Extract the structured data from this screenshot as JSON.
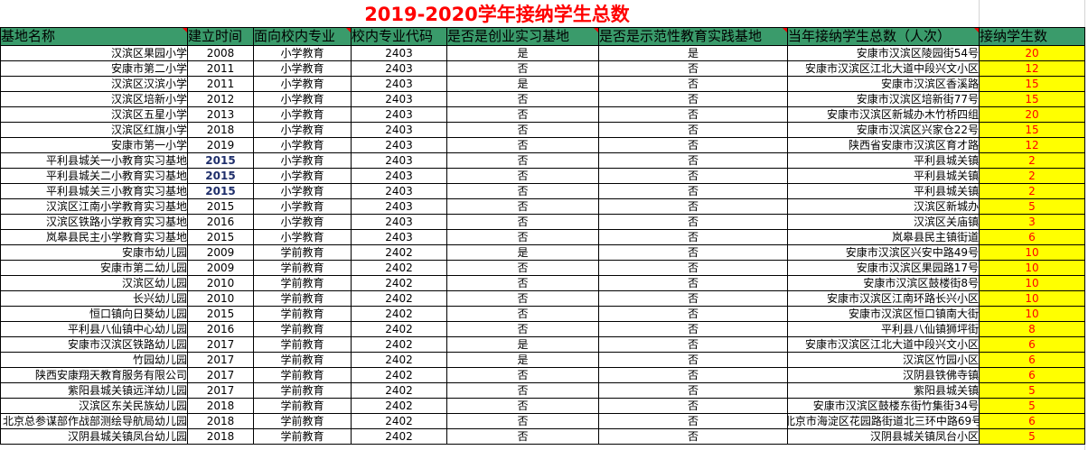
{
  "title": "2019-2020学年接纳学生总数",
  "colors": {
    "header_bg": "#3a9b6b",
    "count_bg": "#ffff00",
    "count_text": "#ff0000",
    "title": "#ff0000"
  },
  "headers": [
    "基地名称",
    "建立时间",
    "面向校内专业",
    "校内专业代码",
    "是否是创业实习基地",
    "是否是示范性教育实践基地",
    "当年接纳学生总数（人次）",
    "接纳学生数"
  ],
  "rows": [
    [
      "汉滨区果园小学",
      "2008",
      "小学教育",
      "2403",
      "是",
      "是",
      "安康市汉滨区陵园街54号",
      "20"
    ],
    [
      "安康市第二小学",
      "2011",
      "小学教育",
      "2403",
      "否",
      "否",
      "安康市汉滨区江北大道中段兴文小区",
      "12"
    ],
    [
      "汉滨区汉滨小学",
      "2011",
      "小学教育",
      "2403",
      "是",
      "否",
      "安康市汉滨区香溪路",
      "15"
    ],
    [
      "汉滨区培新小学",
      "2012",
      "小学教育",
      "2403",
      "否",
      "否",
      "安康市汉滨区培新街77号",
      "15"
    ],
    [
      "汉滨区五星小学",
      "2013",
      "小学教育",
      "2403",
      "否",
      "否",
      "安康市汉滨区新城办木竹桥四组",
      "20"
    ],
    [
      "汉滨区红旗小学",
      "2018",
      "小学教育",
      "2403",
      "否",
      "否",
      "安康市汉滨区兴家仓22号",
      "15"
    ],
    [
      "安康市第一小学",
      "2019",
      "小学教育",
      "2403",
      "否",
      "否",
      "陕西省安康市汉滨区育才路",
      "12"
    ],
    [
      "平利县城关一小教育实习基地",
      "2015",
      "小学教育",
      "2403",
      "否",
      "否",
      "平利县城关镇",
      "2"
    ],
    [
      "平利县城关二小教育实习基地",
      "2015",
      "小学教育",
      "2403",
      "否",
      "否",
      "平利县城关镇",
      "2"
    ],
    [
      "平利县城关三小教育实习基地",
      "2015",
      "小学教育",
      "2403",
      "否",
      "否",
      "平利县城关镇",
      "2"
    ],
    [
      "汉滨区江南小学教育实习基地",
      "2015",
      "小学教育",
      "2403",
      "否",
      "否",
      "汉滨区新城办",
      "5"
    ],
    [
      "汉滨区铁路小学教育实习基地",
      "2016",
      "小学教育",
      "2403",
      "否",
      "否",
      "汉滨区关庙镇",
      "3"
    ],
    [
      "岚皋县民主小学教育实习基地",
      "2015",
      "小学教育",
      "2403",
      "否",
      "否",
      "岚皋县民主镇街道",
      "6"
    ],
    [
      "安康市幼儿园",
      "2009",
      "学前教育",
      "2402",
      "是",
      "否",
      "安康市汉滨区兴安中路49号",
      "10"
    ],
    [
      "安康市第二幼儿园",
      "2009",
      "学前教育",
      "2402",
      "否",
      "否",
      "安康市汉滨区果园路17号",
      "10"
    ],
    [
      "汉滨区幼儿园",
      "2010",
      "学前教育",
      "2402",
      "否",
      "否",
      "安康市汉滨区鼓楼街8号",
      "10"
    ],
    [
      "长兴幼儿园",
      "2010",
      "学前教育",
      "2402",
      "否",
      "否",
      "安康市汉滨区江南环路长兴小区",
      "10"
    ],
    [
      "恒口镇向日葵幼儿园",
      "2015",
      "学前教育",
      "2402",
      "否",
      "否",
      "安康市汉滨区恒口镇南大街",
      "10"
    ],
    [
      "平利县八仙镇中心幼儿园",
      "2016",
      "学前教育",
      "2402",
      "否",
      "否",
      "平利县八仙镇狮坪街",
      "8"
    ],
    [
      "安康市汉滨区铁路幼儿园",
      "2017",
      "学前教育",
      "2402",
      "是",
      "否",
      "安康市汉滨区江北大道中段兴文小区",
      "6"
    ],
    [
      "竹园幼儿园",
      "2017",
      "学前教育",
      "2402",
      "是",
      "否",
      "汉滨区竹园小区",
      "6"
    ],
    [
      "陕西安康翔天教育服务有限公司",
      "2017",
      "学前教育",
      "2402",
      "否",
      "否",
      "汉阴县铁佛寺镇",
      "6"
    ],
    [
      "紫阳县城关镇远洋幼儿园",
      "2017",
      "学前教育",
      "2402",
      "否",
      "否",
      "紫阳县城关镇",
      "5"
    ],
    [
      "汉滨区东关民族幼儿园",
      "2018",
      "学前教育",
      "2402",
      "否",
      "否",
      "安康市汉滨区鼓楼东街竹集街34号",
      "5"
    ],
    [
      "北京总参谋部作战部测绘导航局幼儿园",
      "2018",
      "学前教育",
      "2402",
      "否",
      "否",
      "北京市海淀区花园路街道北三环中路69号",
      "6"
    ],
    [
      "汉阴县城关镇凤台幼儿园",
      "2018",
      "学前教育",
      "2402",
      "否",
      "否",
      "汉阴县城关镇凤台小区",
      "5"
    ]
  ]
}
